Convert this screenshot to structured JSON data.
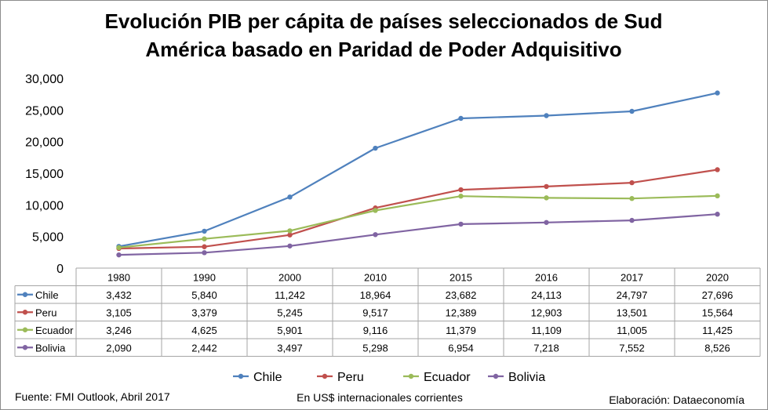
{
  "chart_data": {
    "type": "line",
    "title_line1": "Evolución PIB per cápita de países seleccionados de Sud",
    "title_line2": "América  basado en Paridad de Poder Adquisitivo",
    "categories": [
      "1980",
      "1990",
      "2000",
      "2010",
      "2015",
      "2016",
      "2017",
      "2020"
    ],
    "ylim": [
      0,
      30000
    ],
    "yticks": [
      "0",
      "5,000",
      "10,000",
      "15,000",
      "20,000",
      "25,000",
      "30,000"
    ],
    "grid": false,
    "legend_position": "bottom",
    "series": [
      {
        "name": "Chile",
        "color": "#4f81bd",
        "values": [
          3432,
          5840,
          11242,
          18964,
          23682,
          24113,
          24797,
          27696
        ],
        "labels": [
          "3,432",
          "5,840",
          "11,242",
          "18,964",
          "23,682",
          "24,113",
          "24,797",
          "27,696"
        ]
      },
      {
        "name": "Peru",
        "color": "#c0504d",
        "values": [
          3105,
          3379,
          5245,
          9517,
          12389,
          12903,
          13501,
          15564
        ],
        "labels": [
          "3,105",
          "3,379",
          "5,245",
          "9,517",
          "12,389",
          "12,903",
          "13,501",
          "15,564"
        ]
      },
      {
        "name": "Ecuador",
        "color": "#9bbb59",
        "values": [
          3246,
          4625,
          5901,
          9116,
          11379,
          11109,
          11005,
          11425
        ],
        "labels": [
          "3,246",
          "4,625",
          "5,901",
          "9,116",
          "11,379",
          "11,109",
          "11,005",
          "11,425"
        ]
      },
      {
        "name": "Bolivia",
        "color": "#8064a2",
        "values": [
          2090,
          2442,
          3497,
          5298,
          6954,
          7218,
          7552,
          8526
        ],
        "labels": [
          "2,090",
          "2,442",
          "3,497",
          "5,298",
          "6,954",
          "7,218",
          "7,552",
          "8,526"
        ]
      }
    ]
  },
  "footer": {
    "source": "Fuente: FMI Outlook, Abril 2017",
    "units": "En US$ internacionales corrientes",
    "credit": "Elaboración: Dataeconomía"
  }
}
